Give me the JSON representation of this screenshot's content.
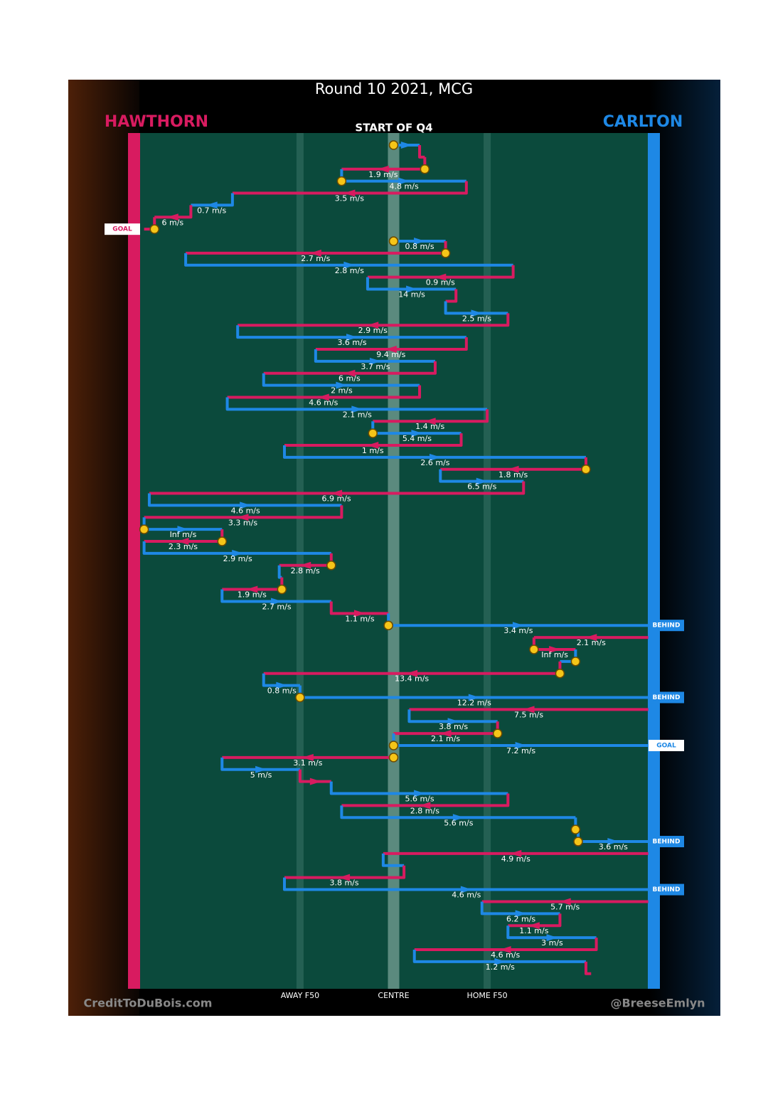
{
  "title": "Round 10 2021, MCG",
  "teams": [
    {
      "name": "HAWTHORN",
      "color": "#d81b60"
    },
    {
      "name": "CARLTON",
      "color": "#1e88e5"
    }
  ],
  "zones": [
    {
      "label": "AWAY F50",
      "at": 32
    },
    {
      "label": "CENTRE",
      "at": 50
    },
    {
      "label": "HOME F50",
      "at": 68
    }
  ],
  "credits": [
    "CreditToDuBois.com",
    "@BreeseEmlyn"
  ],
  "chains": [
    {
      "label": "START OF Q4",
      "result": "GOAL",
      "moves": [
        {
          "team": 1,
          "from": 50,
          "to": 55,
          "marker": true
        },
        {
          "team": 0,
          "from": 55,
          "to": 56
        },
        {
          "team": 0,
          "from": 56,
          "to": 40,
          "label": "1.9 m/s",
          "marker": true
        },
        {
          "team": 1,
          "from": 40,
          "to": 64,
          "label": "4.8 m/s",
          "marker": true
        },
        {
          "team": 0,
          "from": 64,
          "to": 19,
          "label": "3.5 m/s"
        },
        {
          "team": 1,
          "from": 19,
          "to": 11,
          "label": "0.7 m/s"
        },
        {
          "team": 0,
          "from": 11,
          "to": 4,
          "label": "6 m/s"
        },
        {
          "team": 0,
          "from": 4,
          "to": 2,
          "marker": true
        }
      ]
    },
    {
      "result": "BEHIND",
      "moves": [
        {
          "team": 1,
          "from": 50,
          "to": 60,
          "label": "0.8 m/s",
          "marker": true
        },
        {
          "team": 0,
          "from": 60,
          "to": 10,
          "label": "2.7 m/s",
          "marker": true
        },
        {
          "team": 1,
          "from": 10,
          "to": 73,
          "label": "2.8 m/s"
        },
        {
          "team": 0,
          "from": 73,
          "to": 45,
          "label": "0.9 m/s"
        },
        {
          "team": 1,
          "from": 45,
          "to": 62,
          "label": "14 m/s"
        },
        {
          "team": 0,
          "from": 62,
          "to": 60
        },
        {
          "team": 1,
          "from": 60,
          "to": 72,
          "label": "2.5 m/s"
        },
        {
          "team": 0,
          "from": 72,
          "to": 20,
          "label": "2.9 m/s"
        },
        {
          "team": 1,
          "from": 20,
          "to": 64,
          "label": "3.6 m/s"
        },
        {
          "team": 0,
          "from": 64,
          "to": 35,
          "label": "9.4 m/s"
        },
        {
          "team": 1,
          "from": 35,
          "to": 58,
          "label": "3.7 m/s"
        },
        {
          "team": 0,
          "from": 58,
          "to": 25,
          "label": "6 m/s"
        },
        {
          "team": 1,
          "from": 25,
          "to": 55,
          "label": "2 m/s"
        },
        {
          "team": 0,
          "from": 55,
          "to": 18,
          "label": "4.6 m/s"
        },
        {
          "team": 1,
          "from": 18,
          "to": 68,
          "label": "2.1 m/s"
        },
        {
          "team": 0,
          "from": 68,
          "to": 46,
          "label": "1.4 m/s"
        },
        {
          "team": 1,
          "from": 46,
          "to": 63,
          "label": "5.4 m/s",
          "marker": true
        },
        {
          "team": 0,
          "from": 63,
          "to": 29,
          "label": "1 m/s"
        },
        {
          "team": 1,
          "from": 29,
          "to": 87,
          "label": "2.6 m/s"
        },
        {
          "team": 0,
          "from": 87,
          "to": 59,
          "label": "1.8 m/s",
          "marker": true
        },
        {
          "team": 1,
          "from": 59,
          "to": 75,
          "label": "6.5 m/s"
        },
        {
          "team": 0,
          "from": 75,
          "to": 3,
          "label": "6.9 m/s"
        },
        {
          "team": 1,
          "from": 3,
          "to": 40,
          "label": "4.6 m/s"
        },
        {
          "team": 0,
          "from": 40,
          "to": 2,
          "label": "3.3 m/s"
        },
        {
          "team": 1,
          "from": 2,
          "to": 17,
          "label": "Inf m/s",
          "marker": true
        },
        {
          "team": 0,
          "from": 17,
          "to": 2,
          "label": "2.3 m/s",
          "marker": true
        },
        {
          "team": 1,
          "from": 2,
          "to": 38,
          "label": "2.9 m/s"
        },
        {
          "team": 0,
          "from": 38,
          "to": 28,
          "label": "2.8 m/s",
          "marker": true
        },
        {
          "team": 1,
          "from": 28,
          "to": 28.5
        },
        {
          "team": 0,
          "from": 28.5,
          "to": 17,
          "label": "1.9 m/s",
          "marker": true
        },
        {
          "team": 1,
          "from": 17,
          "to": 38,
          "label": "2.7 m/s"
        },
        {
          "team": 0,
          "from": 38,
          "to": 49,
          "label": "1.1 m/s"
        },
        {
          "team": 1,
          "from": 49,
          "to": 99,
          "label": "3.4 m/s",
          "marker": true
        }
      ]
    },
    {
      "result": "BEHIND",
      "moves": [
        {
          "team": 0,
          "from": 99,
          "to": 77,
          "label": "2.1 m/s"
        },
        {
          "team": 0,
          "from": 77,
          "to": 85,
          "label": "Inf m/s",
          "marker": true
        },
        {
          "team": 1,
          "from": 85,
          "to": 82,
          "marker": true
        },
        {
          "team": 0,
          "from": 82,
          "to": 25,
          "label": "13.4 m/s",
          "marker": true
        },
        {
          "team": 1,
          "from": 25,
          "to": 32,
          "label": "0.8 m/s"
        },
        {
          "team": 1,
          "from": 32,
          "to": 99,
          "label": "12.2 m/s",
          "marker": true
        }
      ]
    },
    {
      "result": "GOAL",
      "moves": [
        {
          "team": 0,
          "from": 99,
          "to": 53,
          "label": "7.5 m/s"
        },
        {
          "team": 1,
          "from": 53,
          "to": 70,
          "label": "3.8 m/s"
        },
        {
          "team": 0,
          "from": 70,
          "to": 50,
          "label": "2.1 m/s",
          "marker": true
        },
        {
          "team": 1,
          "from": 50,
          "to": 99,
          "label": "7.2 m/s",
          "marker": true
        }
      ]
    },
    {
      "result": "BEHIND",
      "moves": [
        {
          "team": 0,
          "from": 50,
          "to": 17,
          "label": "3.1 m/s",
          "marker": true
        },
        {
          "team": 1,
          "from": 17,
          "to": 32,
          "label": "5 m/s"
        },
        {
          "team": 0,
          "from": 32,
          "to": 38
        },
        {
          "team": 1,
          "from": 38,
          "to": 72,
          "label": "5.6 m/s"
        },
        {
          "team": 0,
          "from": 72,
          "to": 40,
          "label": "2.8 m/s"
        },
        {
          "team": 1,
          "from": 40,
          "to": 85,
          "label": "5.6 m/s"
        },
        {
          "team": 1,
          "from": 85,
          "to": 85.5,
          "marker": true
        },
        {
          "team": 1,
          "from": 85.5,
          "to": 99,
          "label": "3.6 m/s",
          "marker": true
        }
      ]
    },
    {
      "result": "BEHIND",
      "moves": [
        {
          "team": 0,
          "from": 99,
          "to": 48,
          "label": "4.9 m/s"
        },
        {
          "team": 1,
          "from": 48,
          "to": 52
        },
        {
          "team": 0,
          "from": 52,
          "to": 29,
          "label": "3.8 m/s"
        },
        {
          "team": 1,
          "from": 29,
          "to": 99,
          "label": "4.6 m/s"
        }
      ]
    },
    {
      "moves": [
        {
          "team": 0,
          "from": 99,
          "to": 67,
          "label": "5.7 m/s"
        },
        {
          "team": 1,
          "from": 67,
          "to": 82,
          "label": "6.2 m/s"
        },
        {
          "team": 0,
          "from": 82,
          "to": 72,
          "label": "1.1 m/s"
        },
        {
          "team": 1,
          "from": 72,
          "to": 89,
          "label": "3 m/s"
        },
        {
          "team": 0,
          "from": 89,
          "to": 54,
          "label": "4.6 m/s"
        },
        {
          "team": 1,
          "from": 54,
          "to": 87,
          "label": "1.2 m/s"
        },
        {
          "team": 0,
          "from": 87,
          "to": 88
        }
      ]
    }
  ]
}
